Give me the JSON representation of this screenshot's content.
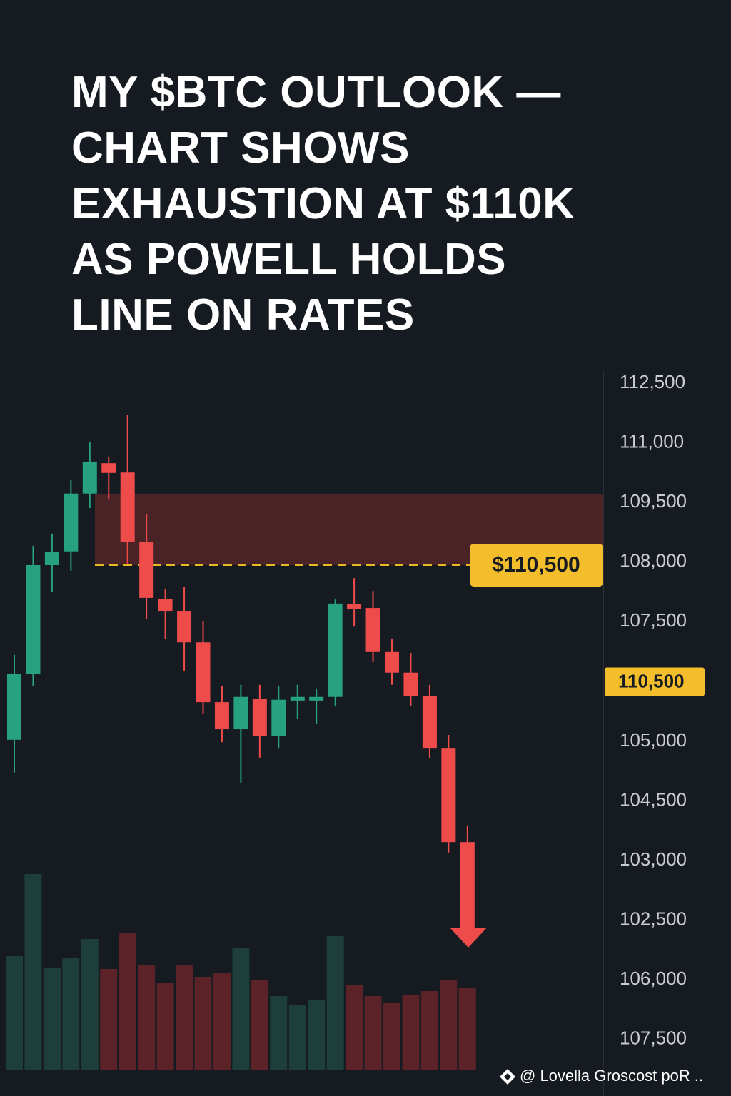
{
  "header": {
    "title_lines": [
      "MY $BTC OUTLOOK —",
      "CHART SHOWS",
      "EXHAUSTION AT $110K",
      "AS POWELL HOLDS",
      "LINE ON RATES"
    ]
  },
  "chart_data": {
    "type": "candlestick",
    "ylim": [
      96000,
      112500
    ],
    "open": [
      103680,
      105300,
      108000,
      108340,
      109770,
      110520,
      110290,
      108570,
      107170,
      106870,
      106090,
      104610,
      103940,
      104700,
      103770,
      104650,
      104650,
      104740,
      107030,
      106940,
      105850,
      105340,
      104770,
      103480,
      101150
    ],
    "high": [
      105780,
      108480,
      108780,
      110120,
      111040,
      110680,
      111710,
      109270,
      107420,
      107470,
      106620,
      105000,
      105040,
      105040,
      105000,
      105040,
      104950,
      107150,
      107680,
      107360,
      106180,
      105830,
      105040,
      103800,
      101560
    ],
    "low": [
      102870,
      105000,
      107330,
      107860,
      109410,
      109620,
      108040,
      106660,
      106180,
      105390,
      104330,
      103620,
      102620,
      103240,
      103480,
      104190,
      104070,
      104510,
      106480,
      105600,
      105040,
      104510,
      103220,
      100890,
      98950
    ],
    "close": [
      105300,
      108000,
      108320,
      109770,
      110560,
      110280,
      108570,
      107190,
      106870,
      106090,
      104610,
      103940,
      104740,
      103770,
      104670,
      104740,
      104740,
      107050,
      106920,
      105850,
      105340,
      104770,
      103480,
      101150,
      98950
    ],
    "volume": [
      160,
      275,
      144,
      157,
      184,
      142,
      192,
      147,
      122,
      147,
      131,
      136,
      172,
      126,
      104,
      92,
      98,
      188,
      120,
      104,
      94,
      106,
      111,
      126,
      116
    ],
    "volume_lim": [
      0,
      300
    ],
    "up_color": "#26a27e",
    "down_color": "#ee4b4b",
    "volume_up_color": "#1e3e3a",
    "volume_down_color": "#5b2328",
    "price_labels": [
      "112,500",
      "111,000",
      "109,500",
      "108,000",
      "107,500",
      "110,500",
      "105,000",
      "104,500",
      "103,000",
      "102,500",
      "106,000",
      "107,500"
    ],
    "level_label": "$110,500"
  },
  "footer": {
    "watermark": "@ Lovella Groscost poR .."
  }
}
